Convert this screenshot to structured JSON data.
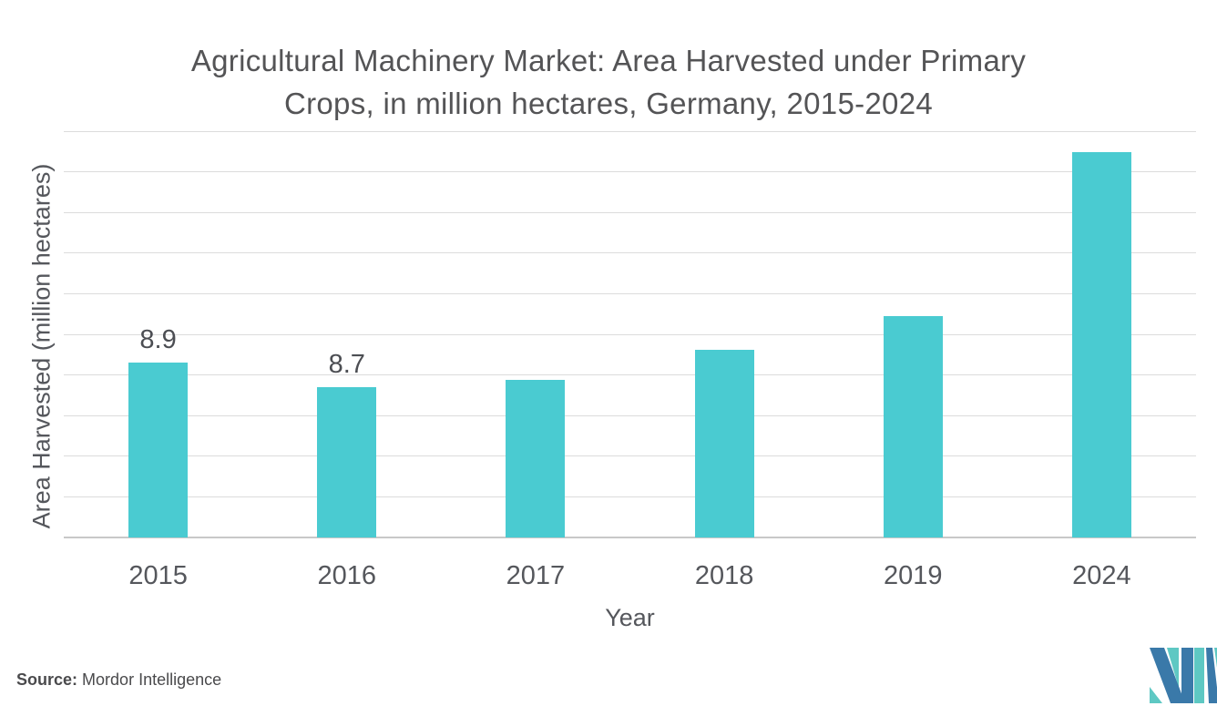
{
  "title_lines": [
    "Agricultural Machinery Market: Area Harvested under Primary",
    "Crops, in million hectares, Germany, 2015-2024"
  ],
  "source": {
    "label": "Source:",
    "value": "Mordor Intelligence"
  },
  "logo": {
    "name": "mordor-intelligence-logo"
  },
  "colors": {
    "bar": "#4ACBD1",
    "grid": "#DCDCDC",
    "axis": "#C8C8C8",
    "title": "#545456",
    "text": "#55575C",
    "logo_blue": "#3A79A9",
    "logo_teal": "#5EC8C3"
  },
  "chart_data": {
    "type": "bar",
    "title": "Agricultural Machinery Market: Area Harvested under Primary Crops, in million hectares, Germany, 2015-2024",
    "categories": [
      "2015",
      "2016",
      "2017",
      "2018",
      "2019",
      "2024"
    ],
    "values": [
      8.9,
      8.7,
      8.76,
      9.0,
      9.27,
      10.58
    ],
    "bar_labels": [
      "8.9",
      "8.7",
      "",
      "",
      "",
      ""
    ],
    "xlabel": "Year",
    "ylabel": "Area Harvested (million hectares)",
    "ylim": [
      7.5,
      10.75
    ],
    "gridline_count": 11,
    "grid": true,
    "legend": false,
    "y_tick_labels_visible": false,
    "bar_color": "#4ACBD1"
  }
}
